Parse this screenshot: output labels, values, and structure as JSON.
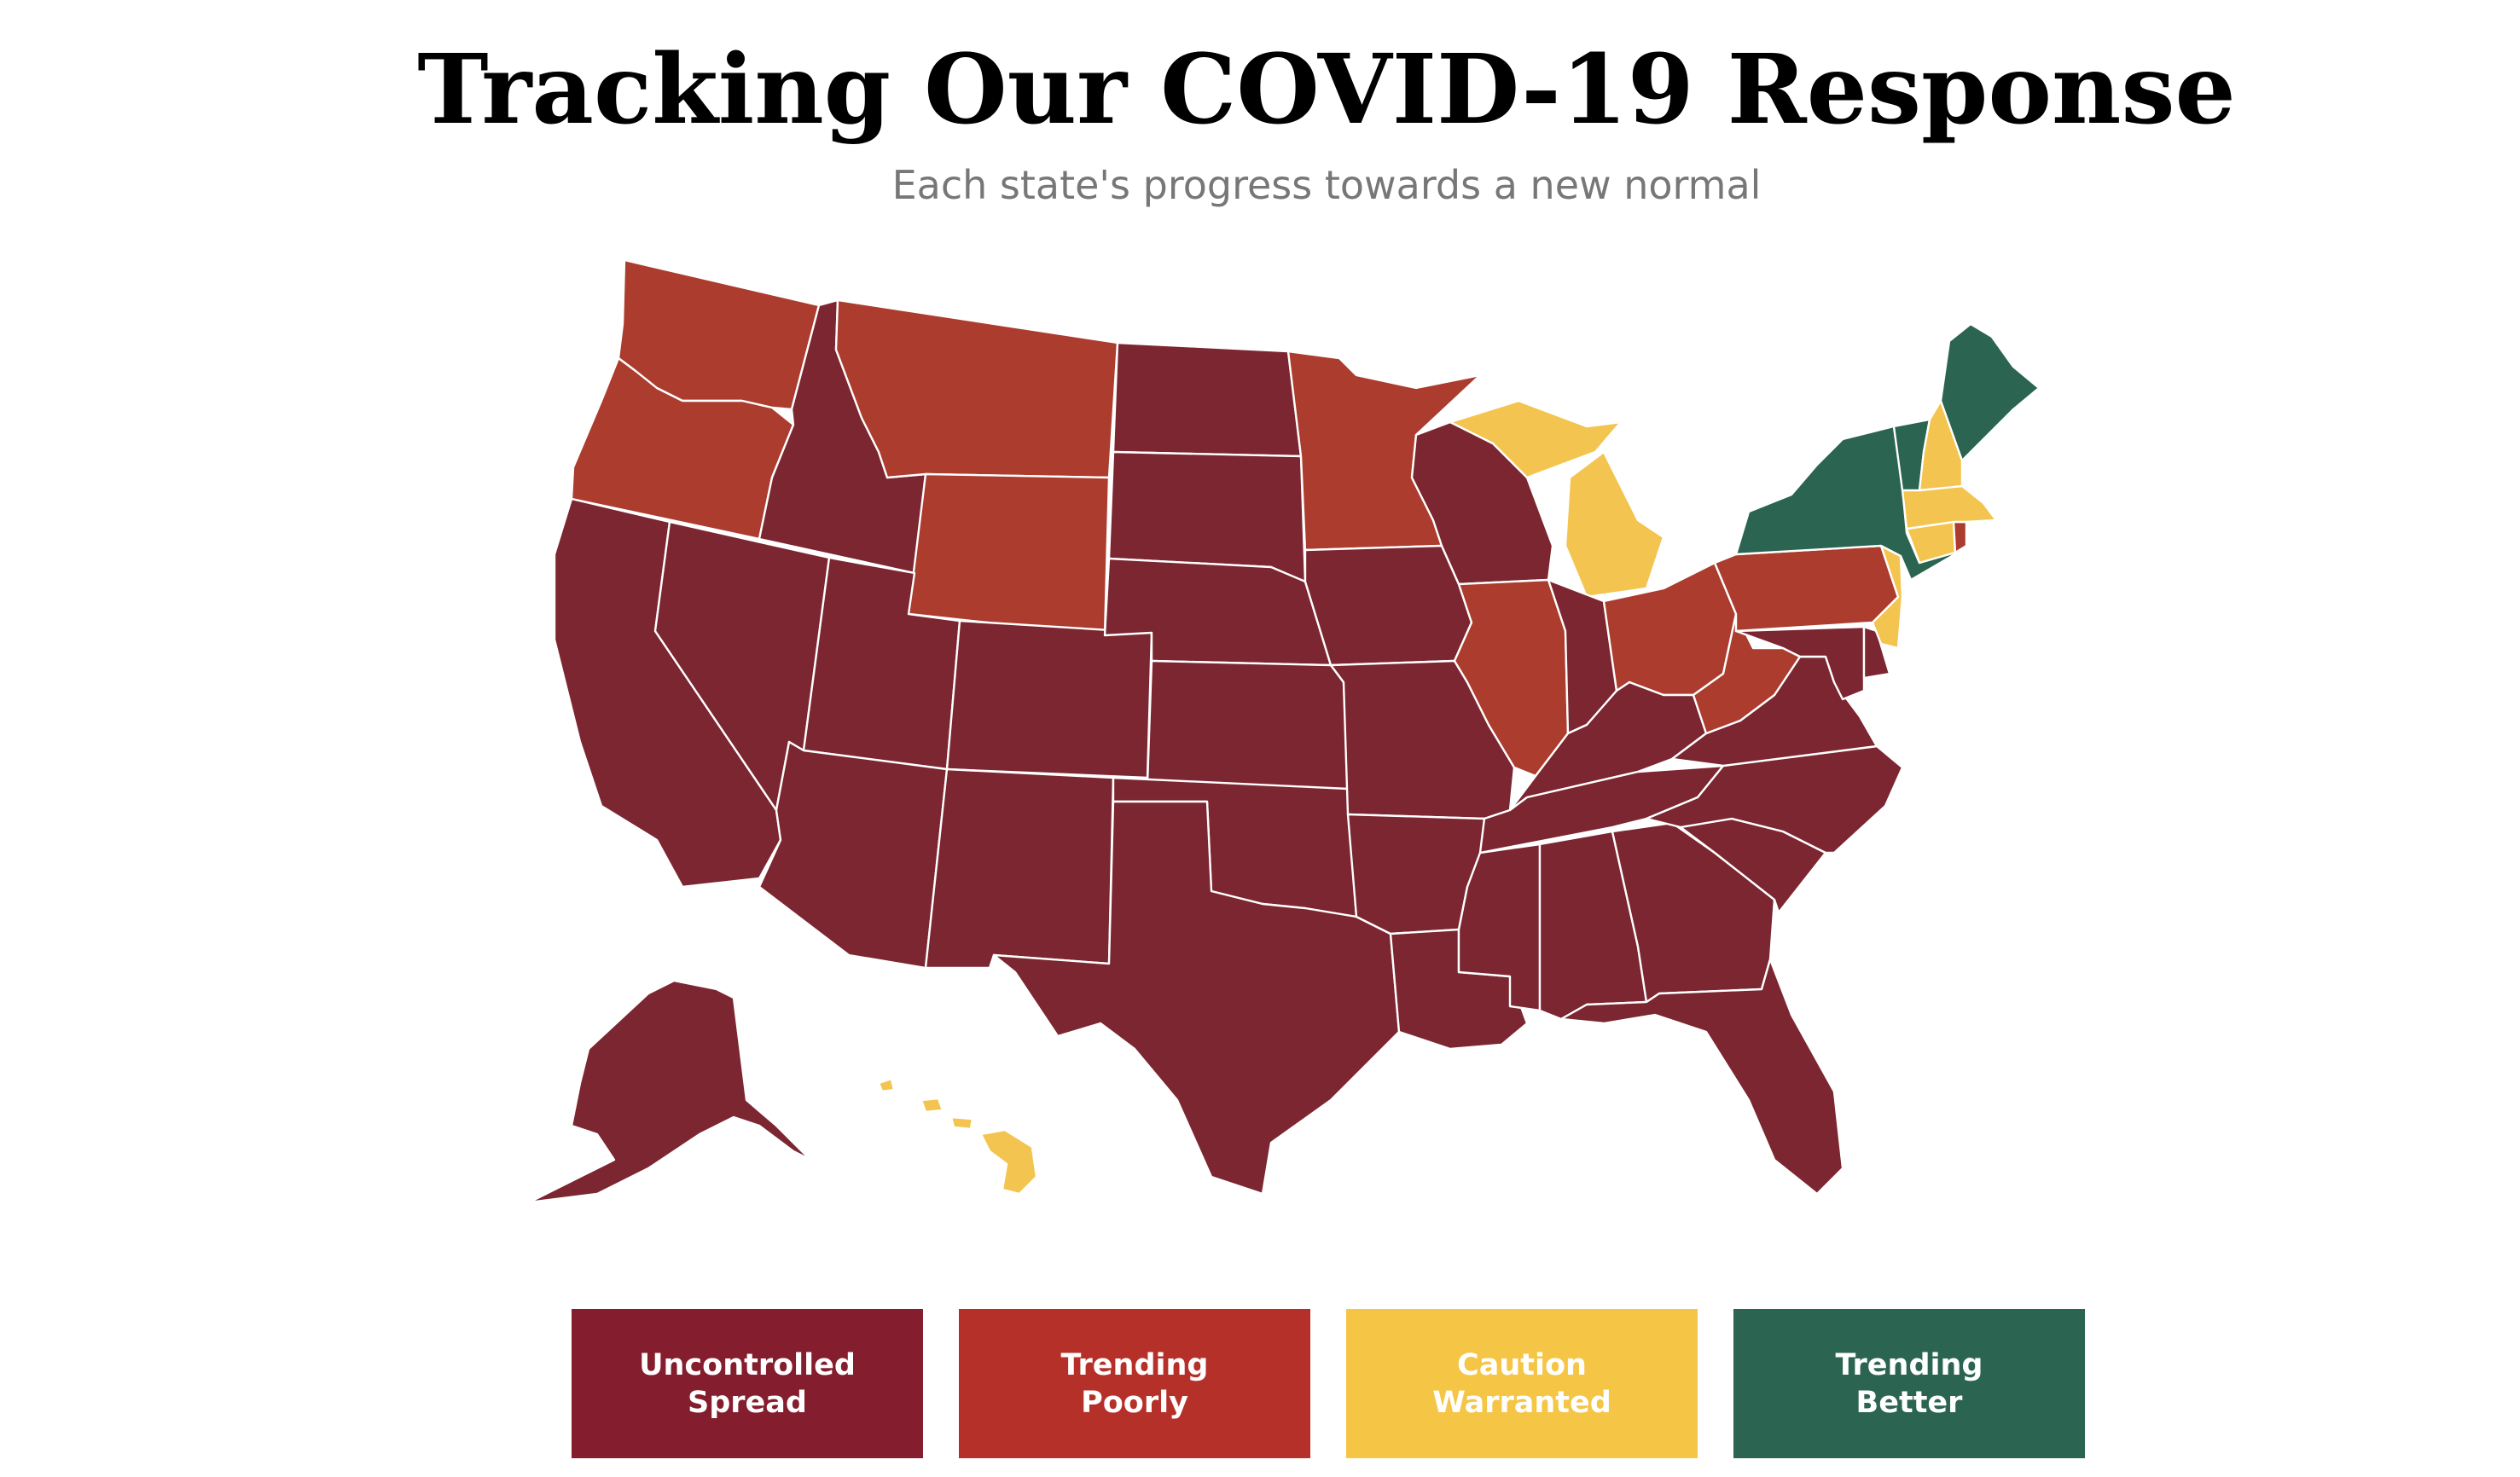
{
  "header": {
    "title": "Tracking Our COVID-19 Response",
    "subtitle": "Each state's progress towards a new normal"
  },
  "colors": {
    "uncontrolled": "#7b2630",
    "poorly": "#ab3c2e",
    "caution": "#f3c550",
    "better": "#2b6450"
  },
  "legend": [
    {
      "key": "uncontrolled",
      "label": "Uncontrolled\nSpread",
      "color": "#841d2d"
    },
    {
      "key": "poorly",
      "label": "Trending\nPoorly",
      "color": "#b6302a"
    },
    {
      "key": "caution",
      "label": "Caution\nWarranted",
      "color": "#f5c546"
    },
    {
      "key": "better",
      "label": "Trending\nBetter",
      "color": "#2b6450"
    }
  ],
  "states": {
    "WA": "poorly",
    "OR": "poorly",
    "MT": "poorly",
    "WY": "poorly",
    "MN": "poorly",
    "IL": "poorly",
    "OH": "poorly",
    "PA": "poorly",
    "WV": "poorly",
    "RI": "poorly",
    "MI": "caution",
    "NH": "caution",
    "MA": "caution",
    "CT": "caution",
    "NJ": "caution",
    "HI": "caution",
    "NY": "better",
    "VT": "better",
    "ME": "better",
    "CA": "uncontrolled",
    "NV": "uncontrolled",
    "ID": "uncontrolled",
    "UT": "uncontrolled",
    "AZ": "uncontrolled",
    "CO": "uncontrolled",
    "NM": "uncontrolled",
    "ND": "uncontrolled",
    "SD": "uncontrolled",
    "NE": "uncontrolled",
    "KS": "uncontrolled",
    "OK": "uncontrolled",
    "TX": "uncontrolled",
    "IA": "uncontrolled",
    "MO": "uncontrolled",
    "AR": "uncontrolled",
    "LA": "uncontrolled",
    "WI": "uncontrolled",
    "IN": "uncontrolled",
    "KY": "uncontrolled",
    "TN": "uncontrolled",
    "MS": "uncontrolled",
    "AL": "uncontrolled",
    "GA": "uncontrolled",
    "FL": "uncontrolled",
    "SC": "uncontrolled",
    "NC": "uncontrolled",
    "VA": "uncontrolled",
    "MD": "uncontrolled",
    "DE": "uncontrolled",
    "AK": "uncontrolled"
  }
}
